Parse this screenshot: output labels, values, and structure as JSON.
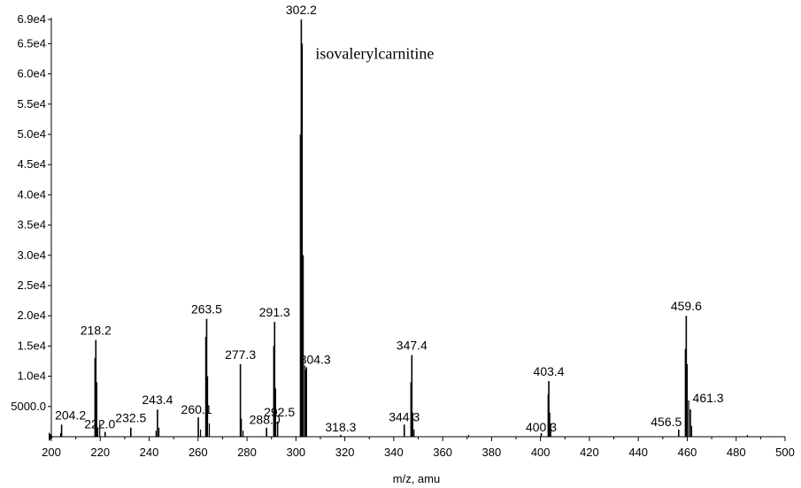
{
  "chart_data": {
    "type": "bar",
    "title": "",
    "xlabel": "m/z, amu",
    "ylabel": "",
    "xlim": [
      200,
      500
    ],
    "ylim": [
      0,
      69000
    ],
    "xticks": [
      "200",
      "220",
      "240",
      "260",
      "280",
      "300",
      "320",
      "340",
      "360",
      "380",
      "400",
      "420",
      "440",
      "460",
      "480",
      "500"
    ],
    "yticks": [
      {
        "value": 5000,
        "label": "5000.0"
      },
      {
        "value": 10000,
        "label": "1.0e4"
      },
      {
        "value": 15000,
        "label": "1.5e4"
      },
      {
        "value": 20000,
        "label": "2.0e4"
      },
      {
        "value": 25000,
        "label": "2.5e4"
      },
      {
        "value": 30000,
        "label": "3.0e4"
      },
      {
        "value": 35000,
        "label": "3.5e4"
      },
      {
        "value": 40000,
        "label": "4.0e4"
      },
      {
        "value": 45000,
        "label": "4.5e4"
      },
      {
        "value": 50000,
        "label": "5.0e4"
      },
      {
        "value": 55000,
        "label": "5.5e4"
      },
      {
        "value": 60000,
        "label": "6.0e4"
      },
      {
        "value": 65000,
        "label": "6.5e4"
      },
      {
        "value": 69000,
        "label": "6.9e4"
      }
    ],
    "peaks": [
      {
        "mz": 204.2,
        "intensity": 2000,
        "label": "204.2"
      },
      {
        "mz": 218.2,
        "intensity": 16000,
        "label": "218.2"
      },
      {
        "mz": 222.0,
        "intensity": 800,
        "label": "222.0"
      },
      {
        "mz": 232.5,
        "intensity": 1500,
        "label": "232.5"
      },
      {
        "mz": 243.4,
        "intensity": 4500,
        "label": "243.4"
      },
      {
        "mz": 260.1,
        "intensity": 3200,
        "label": "260.1"
      },
      {
        "mz": 263.5,
        "intensity": 19500,
        "label": "263.5"
      },
      {
        "mz": 277.3,
        "intensity": 12000,
        "label": "277.3"
      },
      {
        "mz": 288.0,
        "intensity": 1500,
        "label": "288.0"
      },
      {
        "mz": 291.3,
        "intensity": 19000,
        "label": "291.3"
      },
      {
        "mz": 292.5,
        "intensity": 2500,
        "label": "292.5"
      },
      {
        "mz": 302.2,
        "intensity": 69000,
        "label": "302.2"
      },
      {
        "mz": 304.3,
        "intensity": 11500,
        "label": "304.3"
      },
      {
        "mz": 318.3,
        "intensity": 300,
        "label": "318.3"
      },
      {
        "mz": 344.3,
        "intensity": 2000,
        "label": "344.3"
      },
      {
        "mz": 347.4,
        "intensity": 13500,
        "label": "347.4"
      },
      {
        "mz": 400.3,
        "intensity": 600,
        "label": "400.3"
      },
      {
        "mz": 403.4,
        "intensity": 9200,
        "label": "403.4"
      },
      {
        "mz": 456.5,
        "intensity": 1200,
        "label": "456.5"
      },
      {
        "mz": 459.6,
        "intensity": 20000,
        "label": "459.6"
      },
      {
        "mz": 461.3,
        "intensity": 4500,
        "label": "461.3"
      }
    ],
    "minor_peaks": [
      {
        "mz": 203.8,
        "intensity": 600
      },
      {
        "mz": 217.8,
        "intensity": 13000
      },
      {
        "mz": 218.6,
        "intensity": 9000
      },
      {
        "mz": 219.0,
        "intensity": 1500
      },
      {
        "mz": 219.8,
        "intensity": 2300
      },
      {
        "mz": 244.0,
        "intensity": 1500
      },
      {
        "mz": 242.8,
        "intensity": 1000
      },
      {
        "mz": 261.0,
        "intensity": 1200
      },
      {
        "mz": 263.1,
        "intensity": 16500
      },
      {
        "mz": 263.9,
        "intensity": 10000
      },
      {
        "mz": 264.6,
        "intensity": 2200
      },
      {
        "mz": 277.7,
        "intensity": 3000
      },
      {
        "mz": 278.4,
        "intensity": 1000
      },
      {
        "mz": 290.9,
        "intensity": 15000
      },
      {
        "mz": 291.7,
        "intensity": 8000
      },
      {
        "mz": 301.8,
        "intensity": 50000
      },
      {
        "mz": 302.6,
        "intensity": 65000
      },
      {
        "mz": 303.0,
        "intensity": 30000
      },
      {
        "mz": 303.6,
        "intensity": 11800
      },
      {
        "mz": 303.9,
        "intensity": 11000
      },
      {
        "mz": 347.0,
        "intensity": 9000
      },
      {
        "mz": 347.8,
        "intensity": 4000
      },
      {
        "mz": 348.3,
        "intensity": 1200
      },
      {
        "mz": 403.1,
        "intensity": 7000
      },
      {
        "mz": 403.8,
        "intensity": 4000
      },
      {
        "mz": 404.2,
        "intensity": 2200
      },
      {
        "mz": 459.2,
        "intensity": 14500
      },
      {
        "mz": 460.0,
        "intensity": 12000
      },
      {
        "mz": 460.6,
        "intensity": 6000
      },
      {
        "mz": 461.8,
        "intensity": 1800
      },
      {
        "mz": 370.6,
        "intensity": 300
      },
      {
        "mz": 484.6,
        "intensity": 300
      }
    ],
    "annotations": [
      {
        "text": "isovalerylcarnitine",
        "mz": 302.2
      }
    ]
  }
}
